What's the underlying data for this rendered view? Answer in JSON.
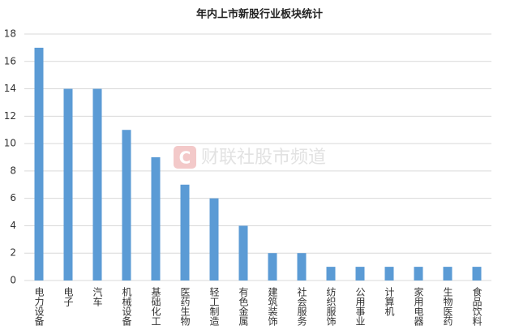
{
  "chart_data": {
    "type": "bar",
    "title": "年内上市新股行业板块统计",
    "watermark": "财联社股市频道",
    "categories": [
      "电力设备",
      "电子",
      "汽车",
      "机械设备",
      "基础化工",
      "医药生物",
      "轻工制造",
      "有色金属",
      "建筑装饰",
      "社会服务",
      "纺织服饰",
      "公用事业",
      "计算机",
      "家用电器",
      "生物医药",
      "食品饮料"
    ],
    "values": [
      17,
      14,
      14,
      11,
      9,
      7,
      6,
      4,
      2,
      2,
      1,
      1,
      1,
      1,
      1,
      1
    ],
    "color": "#5b9bd5",
    "ylim": [
      0,
      18
    ],
    "yticks": [
      0,
      2,
      4,
      6,
      8,
      10,
      12,
      14,
      16,
      18
    ],
    "grid": true
  }
}
